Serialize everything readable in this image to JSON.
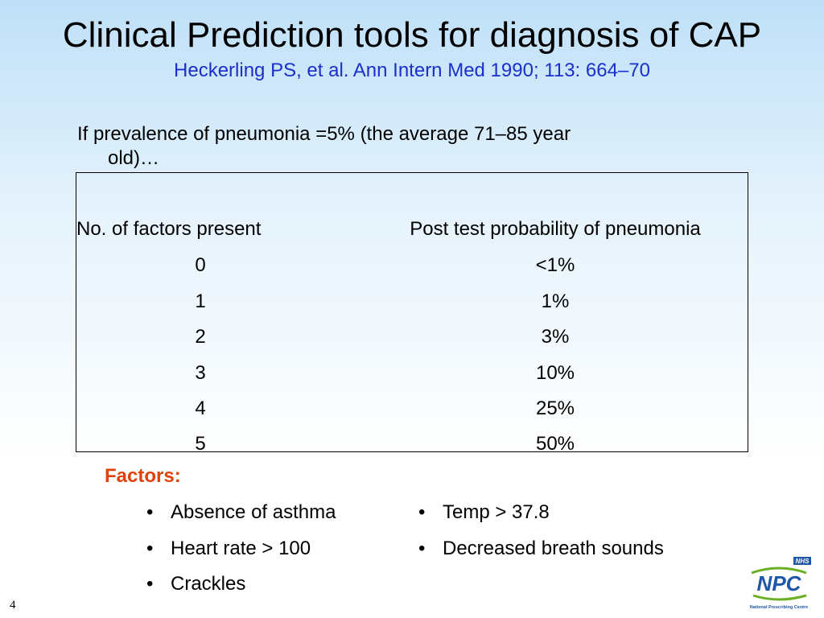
{
  "slide": {
    "title": "Clinical Prediction tools for diagnosis of CAP",
    "subtitle": "Heckerling PS, et al.  Ann Intern Med 1990; 113: 664–70",
    "intro_line1": "If prevalence of pneumonia =5% (the average 71–85 year",
    "intro_line2": "old)…",
    "page_number": "4"
  },
  "table": {
    "headers": [
      "No. of factors present",
      "Post test probability of pneumonia"
    ],
    "rows": [
      [
        "0",
        "<1%"
      ],
      [
        "1",
        "1%"
      ],
      [
        "2",
        "3%"
      ],
      [
        "3",
        "10%"
      ],
      [
        "4",
        "25%"
      ],
      [
        "5",
        "50%"
      ]
    ]
  },
  "factors": {
    "heading": "Factors:",
    "items": [
      "Absence of asthma",
      "Heart rate > 100",
      "Crackles",
      "Temp > 37.8",
      "Decreased breath sounds"
    ]
  },
  "logo": {
    "badge": "NHS",
    "name": "NPC",
    "caption": "National Prescribing Centre",
    "colors": {
      "blue": "#1f57a8",
      "green": "#6ab023"
    }
  },
  "colors": {
    "subtitle": "#1a2fcc",
    "factors_heading": "#e0420a"
  }
}
